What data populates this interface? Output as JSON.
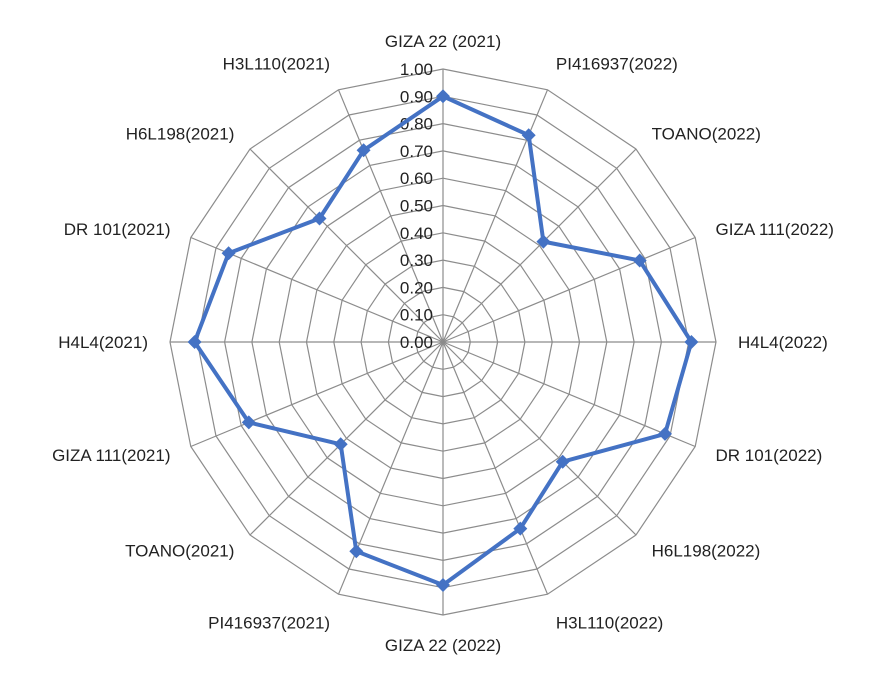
{
  "chart_data": {
    "type": "radar",
    "title": "",
    "categories": [
      "GIZA 22 (2021)",
      "PI416937(2022)",
      "TOANO(2022)",
      "GIZA 111(2022)",
      "H4L4(2022)",
      "DR 101(2022)",
      "H6L198(2022)",
      "H3L110(2022)",
      "GIZA 22 (2022)",
      "PI416937(2021)",
      "TOANO(2021)",
      "GIZA 111(2021)",
      "H4L4(2021)",
      "DR 101(2021)",
      "H6L198(2021)",
      "H3L110(2021)"
    ],
    "series": [
      {
        "values": [
          0.9,
          0.82,
          0.52,
          0.78,
          0.91,
          0.88,
          0.62,
          0.74,
          0.89,
          0.83,
          0.53,
          0.77,
          0.91,
          0.85,
          0.64,
          0.76
        ]
      }
    ],
    "rlim": [
      0,
      1
    ],
    "ticks": [
      "0.00",
      "0.10",
      "0.20",
      "0.30",
      "0.40",
      "0.50",
      "0.60",
      "0.70",
      "0.80",
      "0.90",
      "1.00"
    ],
    "grid": true,
    "legend": "none",
    "series_color": "#4472c4",
    "grid_color": "#8c8c8c"
  }
}
